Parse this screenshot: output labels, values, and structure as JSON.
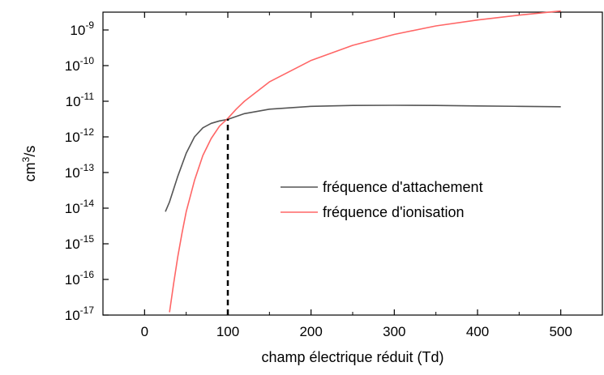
{
  "chart_data": {
    "type": "line",
    "title": "",
    "xlabel": "champ électrique réduit (Td)",
    "ylabel_base": "cm",
    "ylabel_sup": "3",
    "ylabel_tail": "/s",
    "xlim": [
      -50,
      550
    ],
    "ylim_log10": [
      -17,
      -8.5
    ],
    "y_scale": "log",
    "x_ticks": [
      0,
      100,
      200,
      300,
      400,
      500
    ],
    "y_tick_exponents": [
      -17,
      -16,
      -15,
      -14,
      -13,
      -12,
      -11,
      -10,
      -9
    ],
    "y_tick_base": "10",
    "grid": false,
    "legend_position": "center-right",
    "series": [
      {
        "name": "fréquence d'attachement",
        "color": "#555555",
        "x": [
          25,
          30,
          40,
          50,
          60,
          70,
          80,
          90,
          100,
          120,
          150,
          200,
          250,
          300,
          350,
          400,
          450,
          500
        ],
        "y": [
          8e-15,
          1.5e-14,
          8e-14,
          3.5e-13,
          1e-12,
          1.8e-12,
          2.4e-12,
          2.8e-12,
          3.1e-12,
          4.5e-12,
          6e-12,
          7.2e-12,
          7.6e-12,
          7.7e-12,
          7.6e-12,
          7.4e-12,
          7.2e-12,
          7e-12
        ]
      },
      {
        "name": "fréquence d'ionisation",
        "color": "#ff6666",
        "x": [
          30,
          35,
          40,
          45,
          50,
          60,
          70,
          80,
          90,
          100,
          110,
          120,
          150,
          200,
          250,
          300,
          350,
          400,
          450,
          500
        ],
        "y": [
          1.2e-17,
          8e-17,
          4.5e-16,
          2e-15,
          8e-15,
          6e-14,
          3e-13,
          9e-13,
          2e-12,
          3.3e-12,
          6e-12,
          1e-11,
          3.5e-11,
          1.4e-10,
          3.7e-10,
          7.5e-10,
          1.3e-09,
          1.9e-09,
          2.6e-09,
          3.4e-09
        ]
      }
    ],
    "annotations": [
      {
        "type": "vertical-dashed-line",
        "x": 100,
        "y_to": 3.2e-12,
        "color": "#000000"
      }
    ]
  }
}
